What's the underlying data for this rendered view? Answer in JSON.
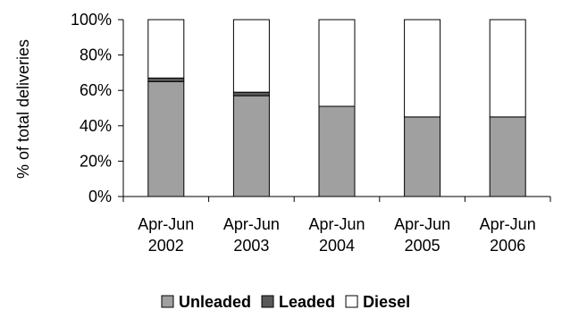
{
  "chart_data": {
    "type": "bar",
    "stacked": true,
    "percent": true,
    "categories": [
      [
        "Apr-Jun",
        "2002"
      ],
      [
        "Apr-Jun",
        "2003"
      ],
      [
        "Apr-Jun",
        "2004"
      ],
      [
        "Apr-Jun",
        "2005"
      ],
      [
        "Apr-Jun",
        "2006"
      ]
    ],
    "series": [
      {
        "name": "Unleaded",
        "color": "#a0a0a0",
        "values": [
          65,
          57,
          51,
          45,
          45
        ]
      },
      {
        "name": "Leaded",
        "color": "#595959",
        "values": [
          2,
          2,
          0,
          0,
          0
        ]
      },
      {
        "name": "Diesel",
        "color": "#ffffff",
        "values": [
          33,
          41,
          49,
          55,
          55
        ]
      }
    ],
    "ylabel": "% of total deliveries",
    "ylim": [
      0,
      100
    ],
    "yticks": [
      "0%",
      "20%",
      "40%",
      "60%",
      "80%",
      "100%"
    ],
    "grid": false,
    "legend_position": "bottom"
  }
}
